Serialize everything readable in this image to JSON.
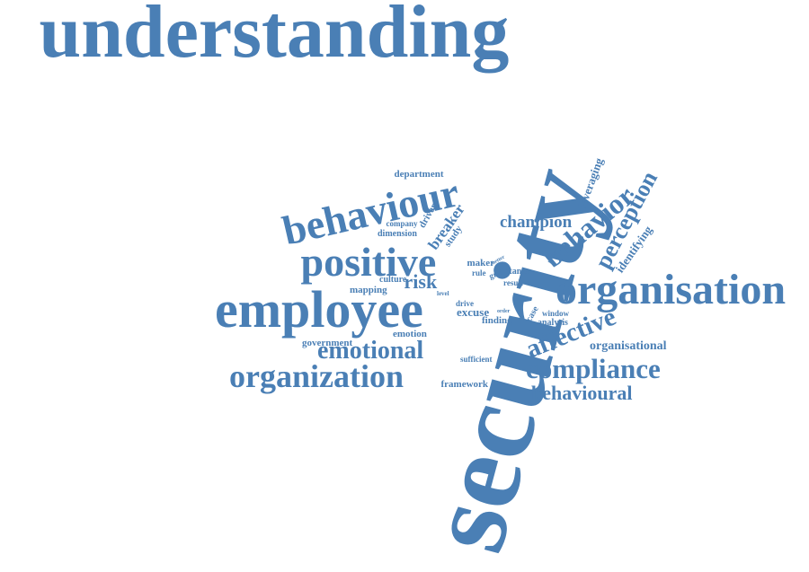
{
  "cloud": {
    "color": "#4a7fb5",
    "words": [
      {
        "key": "understanding",
        "text": "understanding"
      },
      {
        "key": "security",
        "text": "security"
      },
      {
        "key": "employee",
        "text": "employee"
      },
      {
        "key": "organisation",
        "text": "organisation"
      },
      {
        "key": "behaviour",
        "text": "behaviour"
      },
      {
        "key": "positive",
        "text": "positive"
      },
      {
        "key": "organization",
        "text": "organization"
      },
      {
        "key": "compliance",
        "text": "compliance"
      },
      {
        "key": "emotional",
        "text": "emotional"
      },
      {
        "key": "behavior",
        "text": "behavior"
      },
      {
        "key": "perception",
        "text": "perception"
      },
      {
        "key": "affective",
        "text": "affective"
      },
      {
        "key": "behavioural",
        "text": "behavioural"
      },
      {
        "key": "champion",
        "text": "champion"
      },
      {
        "key": "risk",
        "text": "risk"
      },
      {
        "key": "breaker",
        "text": "breaker"
      },
      {
        "key": "leveraging",
        "text": "leveraging"
      },
      {
        "key": "identifying",
        "text": "identifying"
      },
      {
        "key": "organisational",
        "text": "organisational"
      },
      {
        "key": "department",
        "text": "department"
      },
      {
        "key": "company",
        "text": "company"
      },
      {
        "key": "driver",
        "text": "driver"
      },
      {
        "key": "dimension",
        "text": "dimension"
      },
      {
        "key": "study",
        "text": "study"
      },
      {
        "key": "maker",
        "text": "maker"
      },
      {
        "key": "better",
        "text": "better"
      },
      {
        "key": "rule",
        "text": "rule"
      },
      {
        "key": "grid",
        "text": "grid"
      },
      {
        "key": "stance",
        "text": "stance"
      },
      {
        "key": "result",
        "text": "result"
      },
      {
        "key": "group",
        "text": "group"
      },
      {
        "key": "culture",
        "text": "culture"
      },
      {
        "key": "mapping",
        "text": "mapping"
      },
      {
        "key": "level",
        "text": "level"
      },
      {
        "key": "drive",
        "text": "drive"
      },
      {
        "key": "excuse",
        "text": "excuse"
      },
      {
        "key": "order",
        "text": "order"
      },
      {
        "key": "finding",
        "text": "finding"
      },
      {
        "key": "case",
        "text": "case"
      },
      {
        "key": "window",
        "text": "window"
      },
      {
        "key": "analysis",
        "text": "analysis"
      },
      {
        "key": "emotion",
        "text": "emotion"
      },
      {
        "key": "government",
        "text": "government"
      },
      {
        "key": "sufficient",
        "text": "sufficient"
      },
      {
        "key": "framework",
        "text": "framework"
      }
    ]
  }
}
